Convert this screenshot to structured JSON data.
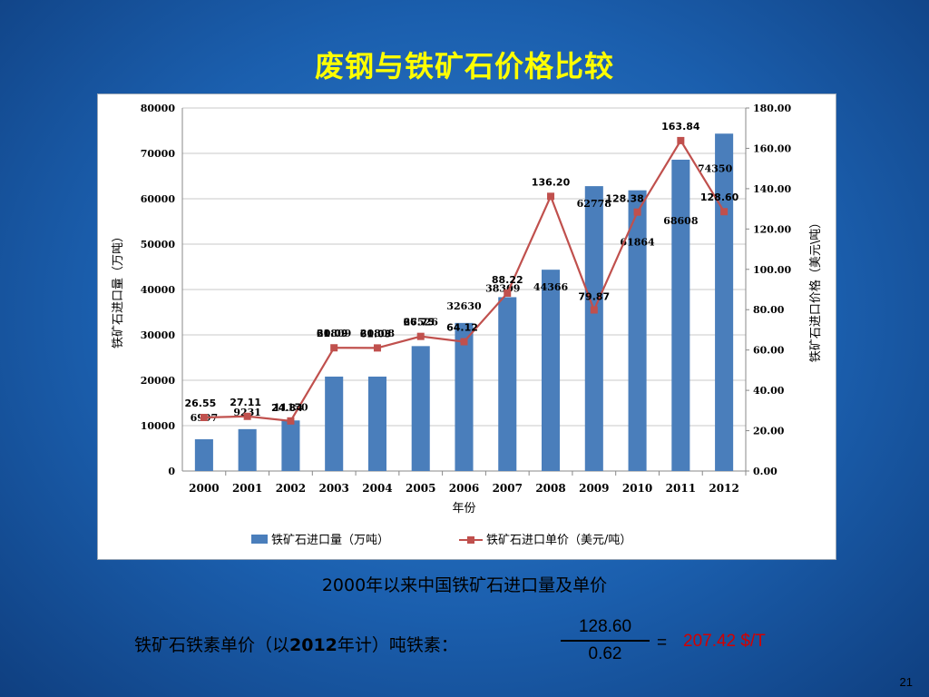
{
  "slide": {
    "title": "废钢与铁矿石价格比较",
    "caption": "2000年以来中国铁矿石进口量及单价",
    "formula_label_prefix": "铁矿石铁素单价（以",
    "formula_label_year": "2012",
    "formula_label_suffix": "年计）吨铁素：",
    "numerator": "128.60",
    "denominator": "0.62",
    "equals": "=",
    "result": "207.42 $/T",
    "page_number": "21"
  },
  "colors": {
    "bar": "#4a7ebb",
    "line": "#c0504d",
    "title": "#ffff00",
    "result": "#d40000"
  },
  "chart_data": {
    "type": "bar",
    "categories": [
      "2000",
      "2001",
      "2002",
      "2003",
      "2004",
      "2005",
      "2006",
      "2007",
      "2008",
      "2009",
      "2010",
      "2011",
      "2012"
    ],
    "xlabel": "年份",
    "ylabel_left": "铁矿石进口量（万吨）",
    "ylabel_right": "铁矿石进口价格（美元\\吨）",
    "ylim_left": [
      0,
      80000
    ],
    "ylim_right": [
      0,
      180
    ],
    "left_ticks": [
      "0",
      "10000",
      "20000",
      "30000",
      "40000",
      "50000",
      "60000",
      "70000",
      "80000"
    ],
    "right_ticks": [
      "0.00",
      "20.00",
      "40.00",
      "60.00",
      "80.00",
      "100.00",
      "120.00",
      "140.00",
      "160.00",
      "180.00"
    ],
    "grid": true,
    "legend_position": "bottom",
    "series": [
      {
        "name": "铁矿石进口量（万吨）",
        "type": "bar",
        "axis": "left",
        "values": [
          6997,
          9231,
          11150,
          20809,
          20808,
          27526,
          32630,
          38309,
          44366,
          62778,
          61864,
          68608,
          74350
        ],
        "labels": [
          "6997",
          "9231",
          "11150",
          "20809",
          "20808",
          "27526",
          "32630",
          "38309",
          "44366",
          "62778",
          "61864",
          "68608",
          "74350"
        ]
      },
      {
        "name": "铁矿石进口单价（美元/吨）",
        "type": "line",
        "axis": "right",
        "values": [
          26.55,
          27.11,
          24.84,
          61.09,
          61.03,
          66.75,
          64.12,
          88.22,
          136.2,
          79.87,
          128.38,
          163.84,
          128.6
        ],
        "labels": [
          "26.55",
          "27.11",
          "24.84",
          "61.09",
          "61.03",
          "66.75",
          "64.12",
          "88.22",
          "136.20",
          "79.87",
          "128.38",
          "163.84",
          "128.60"
        ]
      }
    ]
  }
}
